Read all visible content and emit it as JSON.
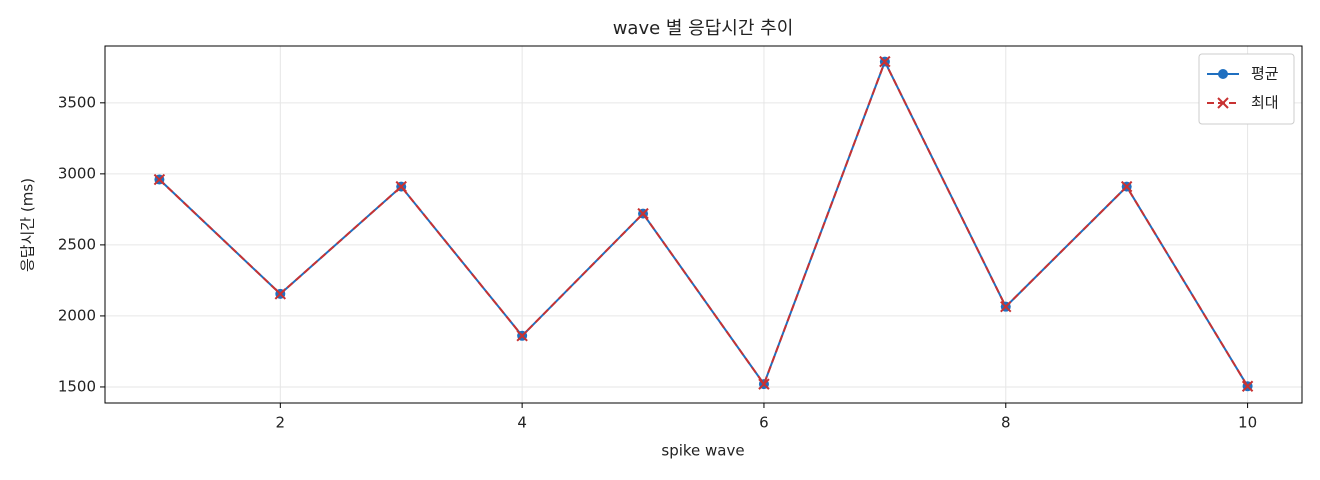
{
  "chart_data": {
    "type": "line",
    "title": "wave 별 응답시간 추이",
    "xlabel": "spike wave",
    "ylabel": "응답시간 (ms)",
    "x": [
      1,
      2,
      3,
      4,
      5,
      6,
      7,
      8,
      9,
      10
    ],
    "series": [
      {
        "name": "평균",
        "color": "#1f6fc0",
        "marker": "o",
        "dash": false,
        "values": [
          2960,
          2155,
          2910,
          1860,
          2720,
          1520,
          3790,
          2065,
          2910,
          1505
        ]
      },
      {
        "name": "최대",
        "color": "#c83232",
        "marker": "x",
        "dash": true,
        "values": [
          2960,
          2155,
          2910,
          1860,
          2720,
          1520,
          3790,
          2065,
          2910,
          1505
        ]
      }
    ],
    "xlim": [
      0.55,
      10.45
    ],
    "ylim": [
      1387,
      3900
    ],
    "xticks": [
      2,
      4,
      6,
      8,
      10
    ],
    "yticks": [
      1500,
      2000,
      2500,
      3000,
      3500
    ],
    "grid": true,
    "legend": "upper right"
  }
}
